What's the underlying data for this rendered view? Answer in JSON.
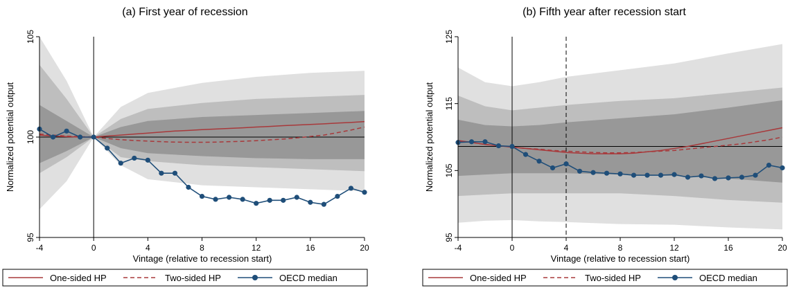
{
  "legend": {
    "one_sided": "One-sided HP",
    "two_sided": "Two-sided HP",
    "oecd": "OECD median"
  },
  "colors": {
    "band_outer": "#e0e0e0",
    "band_mid": "#bebebe",
    "band_inner": "#989898",
    "one_sided": "#a8383a",
    "two_sided": "#a8383a",
    "oecd": "#1f4e79"
  },
  "chart_data": [
    {
      "type": "line",
      "title": "(a) First year of recession",
      "xlabel": "Vintage (relative to recession start)",
      "ylabel": "Normalized potential output",
      "xlim": [
        -4,
        20
      ],
      "ylim": [
        95,
        105
      ],
      "xticks": [
        -4,
        0,
        4,
        8,
        12,
        16,
        20
      ],
      "yticks": [
        95,
        100,
        105
      ],
      "xtick_labels": [
        "-4",
        "0",
        "4",
        "8",
        "12",
        "16",
        "20"
      ],
      "ytick_labels": [
        "95",
        "100",
        "105"
      ],
      "hline": 100,
      "vlines": [
        {
          "x": 0,
          "style": "solid"
        }
      ],
      "x": [
        -4,
        -3,
        -2,
        -1,
        0,
        1,
        2,
        3,
        4,
        5,
        6,
        7,
        8,
        9,
        10,
        11,
        12,
        13,
        14,
        15,
        16,
        17,
        18,
        19,
        20
      ],
      "series": [
        {
          "name": "One-sided HP",
          "style": "solid",
          "values": [
            100.1,
            100.05,
            100.02,
            100.0,
            100.0,
            100.05,
            100.1,
            100.15,
            100.2,
            100.25,
            100.3,
            100.33,
            100.37,
            100.4,
            100.43,
            100.46,
            100.5,
            100.53,
            100.57,
            100.6,
            100.63,
            100.66,
            100.7,
            100.73,
            100.77
          ]
        },
        {
          "name": "Two-sided HP",
          "style": "dashed",
          "values": [
            100.15,
            100.1,
            100.05,
            100.02,
            100.0,
            99.93,
            99.87,
            99.83,
            99.8,
            99.77,
            99.75,
            99.74,
            99.74,
            99.75,
            99.77,
            99.79,
            99.82,
            99.86,
            99.9,
            99.96,
            100.03,
            100.1,
            100.22,
            100.35,
            100.5
          ]
        },
        {
          "name": "OECD median",
          "style": "markers",
          "values": [
            100.4,
            100.0,
            100.3,
            100.0,
            100.0,
            99.45,
            98.7,
            98.95,
            98.85,
            98.2,
            98.2,
            97.5,
            97.05,
            96.9,
            97.0,
            96.9,
            96.7,
            96.85,
            96.85,
            97.0,
            96.75,
            96.65,
            97.05,
            97.45,
            97.25
          ]
        }
      ],
      "bands": {
        "x": [
          -4,
          -2,
          0,
          2,
          4,
          8,
          12,
          16,
          20
        ],
        "outer_upper": [
          105.0,
          102.8,
          100.0,
          101.5,
          102.2,
          102.7,
          103.0,
          103.2,
          103.3
        ],
        "outer_lower": [
          96.4,
          97.8,
          100.0,
          98.6,
          97.9,
          97.6,
          97.5,
          97.4,
          97.3
        ],
        "mid_upper": [
          103.6,
          101.9,
          100.0,
          100.9,
          101.4,
          101.7,
          101.9,
          102.0,
          102.1
        ],
        "mid_lower": [
          98.2,
          99.0,
          100.0,
          99.0,
          98.8,
          98.6,
          98.5,
          98.4,
          98.3
        ],
        "inner_upper": [
          101.6,
          100.8,
          100.0,
          100.5,
          100.8,
          101.0,
          101.1,
          101.2,
          101.3
        ],
        "inner_lower": [
          98.7,
          99.3,
          100.0,
          99.45,
          99.2,
          99.05,
          98.95,
          98.9,
          98.9
        ]
      }
    },
    {
      "type": "line",
      "title": "(b) Fifth year after recession start",
      "xlabel": "Vintage (relative to recession start)",
      "ylabel": "Normalized potential output",
      "xlim": [
        -4,
        20
      ],
      "ylim": [
        95,
        125
      ],
      "xticks": [
        -4,
        0,
        4,
        8,
        12,
        16,
        20
      ],
      "yticks": [
        95,
        105,
        115,
        125
      ],
      "xtick_labels": [
        "-4",
        "0",
        "4",
        "8",
        "12",
        "16",
        "20"
      ],
      "ytick_labels": [
        "95",
        "105",
        "115",
        "125"
      ],
      "hline": 108.6,
      "vlines": [
        {
          "x": 0,
          "style": "solid"
        },
        {
          "x": 4,
          "style": "dashed"
        }
      ],
      "x": [
        -4,
        -3,
        -2,
        -1,
        0,
        1,
        2,
        3,
        4,
        5,
        6,
        7,
        8,
        9,
        10,
        11,
        12,
        13,
        14,
        15,
        16,
        17,
        18,
        19,
        20
      ],
      "series": [
        {
          "name": "One-sided HP",
          "style": "solid",
          "values": [
            109.5,
            109.2,
            108.9,
            108.7,
            108.5,
            108.3,
            108.1,
            107.9,
            107.7,
            107.6,
            107.5,
            107.5,
            107.5,
            107.6,
            107.8,
            108.0,
            108.3,
            108.6,
            109.0,
            109.4,
            109.8,
            110.2,
            110.6,
            111.0,
            111.4
          ]
        },
        {
          "name": "Two-sided HP",
          "style": "dashed",
          "values": [
            109.4,
            109.2,
            108.9,
            108.7,
            108.5,
            108.3,
            108.2,
            108.0,
            107.9,
            107.8,
            107.7,
            107.65,
            107.65,
            107.7,
            107.8,
            107.9,
            108.0,
            108.2,
            108.4,
            108.6,
            108.8,
            109.0,
            109.3,
            109.6,
            110.0
          ]
        },
        {
          "name": "OECD median",
          "style": "markers",
          "values": [
            109.2,
            109.3,
            109.3,
            108.7,
            108.6,
            107.4,
            106.4,
            105.4,
            106.0,
            104.9,
            104.7,
            104.6,
            104.5,
            104.3,
            104.3,
            104.3,
            104.4,
            104.0,
            104.2,
            103.8,
            103.9,
            104.0,
            104.3,
            105.8,
            105.4
          ]
        }
      ],
      "bands": {
        "x": [
          -4,
          -2,
          0,
          2,
          4,
          8,
          12,
          16,
          20
        ],
        "outer_upper": [
          120.4,
          118.2,
          117.6,
          118.2,
          119.0,
          120.0,
          121.0,
          122.5,
          123.9
        ],
        "outer_lower": [
          97.2,
          97.5,
          97.6,
          97.4,
          97.3,
          97.0,
          96.9,
          96.5,
          96.2
        ],
        "mid_upper": [
          116.2,
          114.6,
          114.0,
          114.4,
          114.8,
          115.4,
          115.8,
          116.6,
          117.4
        ],
        "mid_lower": [
          101.2,
          101.4,
          101.6,
          101.6,
          101.6,
          101.6,
          101.2,
          100.6,
          100.2
        ],
        "inner_upper": [
          112.6,
          111.8,
          111.6,
          111.8,
          112.2,
          112.8,
          113.4,
          114.4,
          115.5
        ],
        "inner_lower": [
          104.2,
          104.4,
          104.6,
          104.6,
          104.6,
          104.4,
          104.2,
          103.8,
          103.2
        ]
      }
    }
  ]
}
